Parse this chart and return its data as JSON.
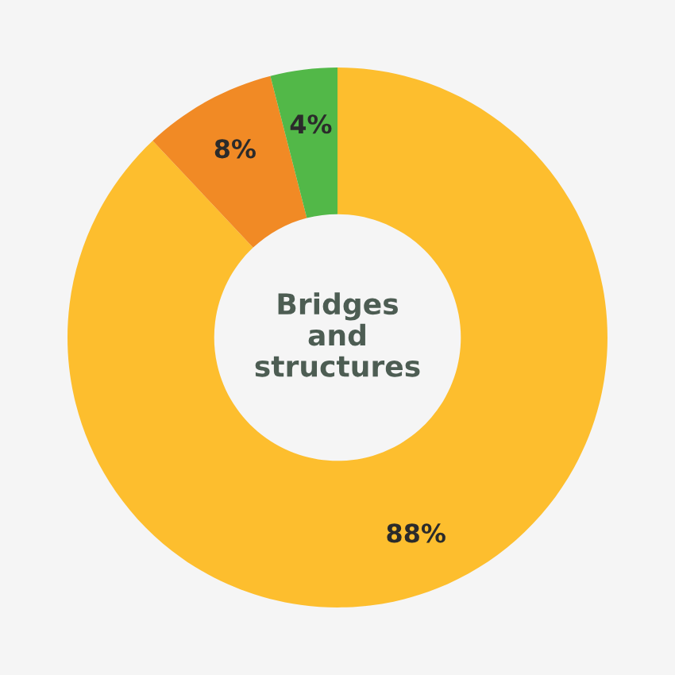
{
  "chart_data": {
    "type": "donut",
    "title": "Bridges\nand\nstructures",
    "categories": [
      null,
      null,
      null
    ],
    "values": [
      88,
      8,
      4
    ],
    "colors": [
      "#fdbe2e",
      "#f18a25",
      "#52b848"
    ],
    "value_labels": [
      "88%",
      "8%",
      "4%"
    ],
    "legend": false
  }
}
